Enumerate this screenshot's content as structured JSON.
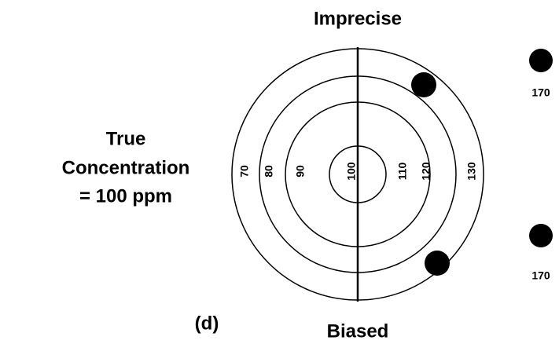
{
  "title": "Imprecise",
  "footer": "Biased",
  "panel_label": "(d)",
  "caption": [
    "True",
    "Concentration",
    "= 100 ppm"
  ],
  "ring_labels": [
    "70",
    "80",
    "90",
    "100",
    "110",
    "120",
    "130"
  ],
  "off_target_labels": [
    "170",
    "170"
  ]
}
